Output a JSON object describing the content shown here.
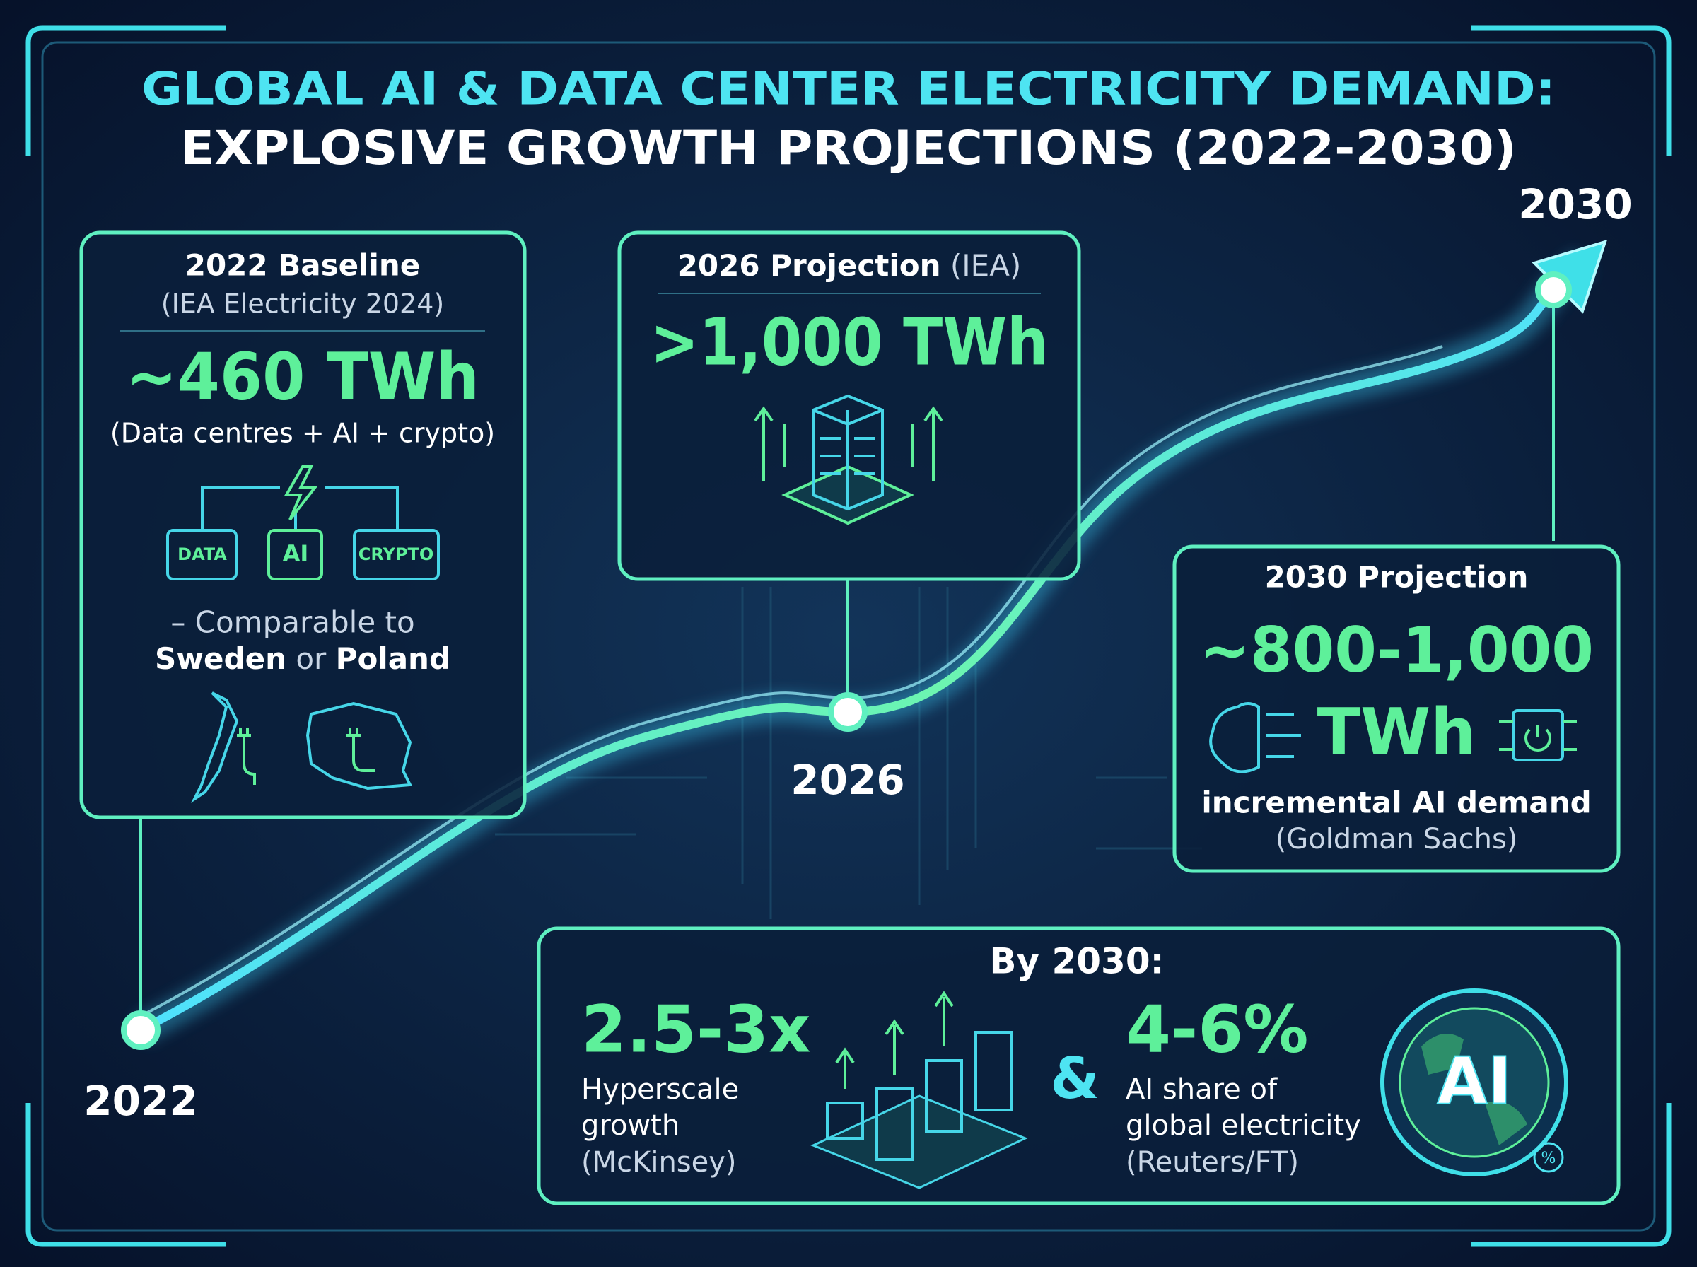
{
  "header": {
    "title": "GLOBAL AI & DATA CENTER ELECTRICITY DEMAND:",
    "subtitle": "EXPLOSIVE GROWTH PROJECTIONS (2022-2030)"
  },
  "timeline": {
    "labels": [
      "2022",
      "2026",
      "2030"
    ]
  },
  "baseline": {
    "heading": "2022 Baseline",
    "source": "(IEA Electricity 2024)",
    "value": "~460 TWh",
    "note": "(Data centres + AI + crypto)",
    "icons": [
      "DATA",
      "AI",
      "CRYPTO"
    ],
    "comparison": "– Comparable to",
    "countries": [
      "Sweden",
      "Poland"
    ],
    "connector": "or"
  },
  "projection_2026": {
    "heading": "2026 Projection",
    "source": "(IEA)",
    "value": ">1,000 TWh"
  },
  "projection_2030": {
    "heading": "2030 Projection",
    "value": "~800-1,000",
    "unit": "TWh",
    "note": "incremental AI demand",
    "source": "(Goldman Sachs)"
  },
  "summary": {
    "heading": "By 2030:",
    "stats": [
      {
        "value": "2.5-3x",
        "label": [
          "Hyperscale",
          "growth"
        ],
        "source": "(McKinsey)"
      },
      {
        "value": "4-6%",
        "label": [
          "AI share of",
          "global electricity"
        ],
        "source": "(Reuters/FT)"
      }
    ],
    "joiner": "&",
    "badge": "AI",
    "badge_symbol": "%"
  }
}
